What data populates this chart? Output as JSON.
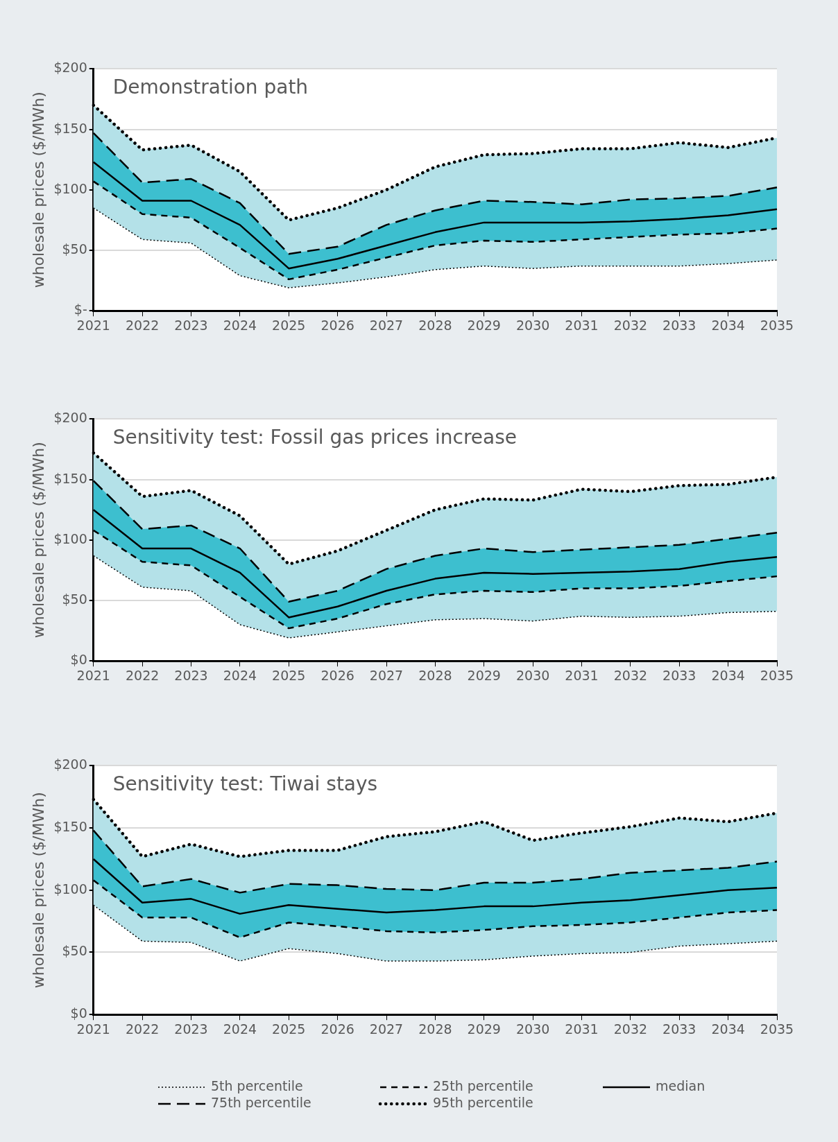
{
  "chart_data": [
    {
      "type": "line",
      "title": "Demonstration path",
      "ylabel": "wholesale prices ($/MWh)",
      "categories": [
        "2021",
        "2022",
        "2023",
        "2024",
        "2025",
        "2026",
        "2027",
        "2028",
        "2029",
        "2030",
        "2031",
        "2032",
        "2033",
        "2034",
        "2035"
      ],
      "ylim": [
        0,
        200
      ],
      "yticks": [
        {
          "value": 0,
          "label": "$-"
        },
        {
          "value": 50,
          "label": "$50"
        },
        {
          "value": 100,
          "label": "$100"
        },
        {
          "value": 150,
          "label": "$150"
        },
        {
          "value": 200,
          "label": "$200"
        }
      ],
      "grid": "y",
      "series": [
        {
          "color": "#000000",
          "line_style": "dotted",
          "values": [
            85,
            59,
            56,
            29,
            19,
            23,
            28,
            34,
            37,
            35,
            37,
            37,
            37,
            39,
            42
          ]
        },
        {
          "color": "#000000",
          "line_style": "dashed",
          "values": [
            107,
            80,
            77,
            52,
            26,
            34,
            44,
            54,
            58,
            57,
            59,
            61,
            63,
            64,
            68
          ]
        },
        {
          "color": "#000000",
          "line_style": "solid",
          "values": [
            123,
            91,
            91,
            71,
            35,
            43,
            54,
            65,
            73,
            73,
            73,
            74,
            76,
            79,
            84
          ],
          "lower": [
            107,
            80,
            77,
            52,
            26,
            34,
            44,
            54,
            58,
            57,
            59,
            61,
            63,
            64,
            68
          ],
          "upper": [
            147,
            106,
            109,
            89,
            47,
            53,
            71,
            83,
            91,
            90,
            88,
            92,
            93,
            95,
            102
          ]
        },
        {
          "color": "#000000",
          "line_style": "dashed",
          "values": [
            147,
            106,
            109,
            89,
            47,
            53,
            71,
            83,
            91,
            90,
            88,
            92,
            93,
            95,
            102
          ]
        },
        {
          "color": "#000000",
          "line_style": "dotted",
          "values": [
            170,
            133,
            137,
            115,
            75,
            85,
            100,
            119,
            129,
            130,
            134,
            134,
            139,
            135,
            143
          ],
          "lower": [
            85,
            59,
            56,
            29,
            19,
            23,
            28,
            34,
            37,
            35,
            37,
            37,
            37,
            39,
            42
          ],
          "upper": [
            170,
            133,
            137,
            115,
            75,
            85,
            100,
            119,
            129,
            130,
            134,
            134,
            139,
            135,
            143
          ]
        }
      ]
    },
    {
      "type": "line",
      "title": "Sensitivity test: Fossil gas prices increase",
      "ylabel": "wholesale prices ($/MWh)",
      "categories": [
        "2021",
        "2022",
        "2023",
        "2024",
        "2025",
        "2026",
        "2027",
        "2028",
        "2029",
        "2030",
        "2031",
        "2032",
        "2033",
        "2034",
        "2035"
      ],
      "ylim": [
        0,
        200
      ],
      "yticks": [
        {
          "value": 0,
          "label": "$0"
        },
        {
          "value": 50,
          "label": "$50"
        },
        {
          "value": 100,
          "label": "$100"
        },
        {
          "value": 150,
          "label": "$150"
        },
        {
          "value": 200,
          "label": "$200"
        }
      ],
      "grid": "y",
      "series": [
        {
          "color": "#000000",
          "line_style": "dotted",
          "values": [
            87,
            61,
            58,
            30,
            19,
            24,
            29,
            34,
            35,
            33,
            37,
            36,
            37,
            40,
            41
          ]
        },
        {
          "color": "#000000",
          "line_style": "dashed",
          "values": [
            108,
            82,
            79,
            53,
            27,
            35,
            47,
            55,
            58,
            57,
            60,
            60,
            62,
            66,
            70
          ]
        },
        {
          "color": "#000000",
          "line_style": "solid",
          "values": [
            125,
            93,
            93,
            73,
            36,
            45,
            58,
            68,
            73,
            72,
            73,
            74,
            76,
            82,
            86
          ],
          "lower": [
            108,
            82,
            79,
            53,
            27,
            35,
            47,
            55,
            58,
            57,
            60,
            60,
            62,
            66,
            70
          ],
          "upper": [
            149,
            109,
            112,
            93,
            49,
            58,
            76,
            87,
            93,
            90,
            92,
            94,
            96,
            101,
            106
          ]
        },
        {
          "color": "#000000",
          "line_style": "dashed",
          "values": [
            149,
            109,
            112,
            93,
            49,
            58,
            76,
            87,
            93,
            90,
            92,
            94,
            96,
            101,
            106
          ]
        },
        {
          "color": "#000000",
          "line_style": "dotted",
          "values": [
            172,
            136,
            141,
            120,
            80,
            91,
            108,
            125,
            134,
            133,
            142,
            140,
            145,
            146,
            152
          ],
          "lower": [
            87,
            61,
            58,
            30,
            19,
            24,
            29,
            34,
            35,
            33,
            37,
            36,
            37,
            40,
            41
          ],
          "upper": [
            172,
            136,
            141,
            120,
            80,
            91,
            108,
            125,
            134,
            133,
            142,
            140,
            145,
            146,
            152
          ]
        }
      ]
    },
    {
      "type": "line",
      "title": "Sensitivity test: Tiwai stays",
      "ylabel": "wholesale prices ($/MWh)",
      "categories": [
        "2021",
        "2022",
        "2023",
        "2024",
        "2025",
        "2026",
        "2027",
        "2028",
        "2029",
        "2030",
        "2031",
        "2032",
        "2033",
        "2034",
        "2035"
      ],
      "ylim": [
        0,
        200
      ],
      "yticks": [
        {
          "value": 0,
          "label": "$0"
        },
        {
          "value": 50,
          "label": "$50"
        },
        {
          "value": 100,
          "label": "$100"
        },
        {
          "value": 150,
          "label": "$150"
        },
        {
          "value": 200,
          "label": "$200"
        }
      ],
      "grid": "y",
      "legend": "bottom",
      "series": [
        {
          "name": "5th percentile",
          "color": "#000000",
          "line_style": "dotted",
          "values": [
            88,
            59,
            58,
            43,
            53,
            49,
            43,
            43,
            44,
            47,
            49,
            50,
            55,
            57,
            59
          ]
        },
        {
          "name": "25th percentile",
          "color": "#000000",
          "line_style": "dashed",
          "values": [
            108,
            78,
            78,
            62,
            74,
            71,
            67,
            66,
            68,
            71,
            72,
            74,
            78,
            82,
            84
          ]
        },
        {
          "name": "median",
          "color": "#000000",
          "line_style": "solid",
          "values": [
            125,
            90,
            93,
            81,
            88,
            85,
            82,
            84,
            87,
            87,
            90,
            92,
            96,
            100,
            102
          ],
          "lower": [
            108,
            78,
            78,
            62,
            74,
            71,
            67,
            66,
            68,
            71,
            72,
            74,
            78,
            82,
            84
          ],
          "upper": [
            148,
            103,
            109,
            98,
            105,
            104,
            101,
            100,
            106,
            106,
            109,
            114,
            116,
            118,
            123
          ]
        },
        {
          "name": "75th percentile",
          "color": "#000000",
          "line_style": "dashed",
          "values": [
            148,
            103,
            109,
            98,
            105,
            104,
            101,
            100,
            106,
            106,
            109,
            114,
            116,
            118,
            123
          ]
        },
        {
          "name": "95th percentile",
          "color": "#000000",
          "line_style": "dotted",
          "values": [
            173,
            127,
            137,
            127,
            132,
            132,
            143,
            147,
            155,
            140,
            146,
            151,
            158,
            155,
            162
          ],
          "lower": [
            88,
            59,
            58,
            43,
            53,
            49,
            43,
            43,
            44,
            47,
            49,
            50,
            55,
            57,
            59
          ],
          "upper": [
            173,
            127,
            137,
            127,
            132,
            132,
            143,
            147,
            155,
            140,
            146,
            151,
            158,
            155,
            162
          ]
        }
      ]
    }
  ]
}
